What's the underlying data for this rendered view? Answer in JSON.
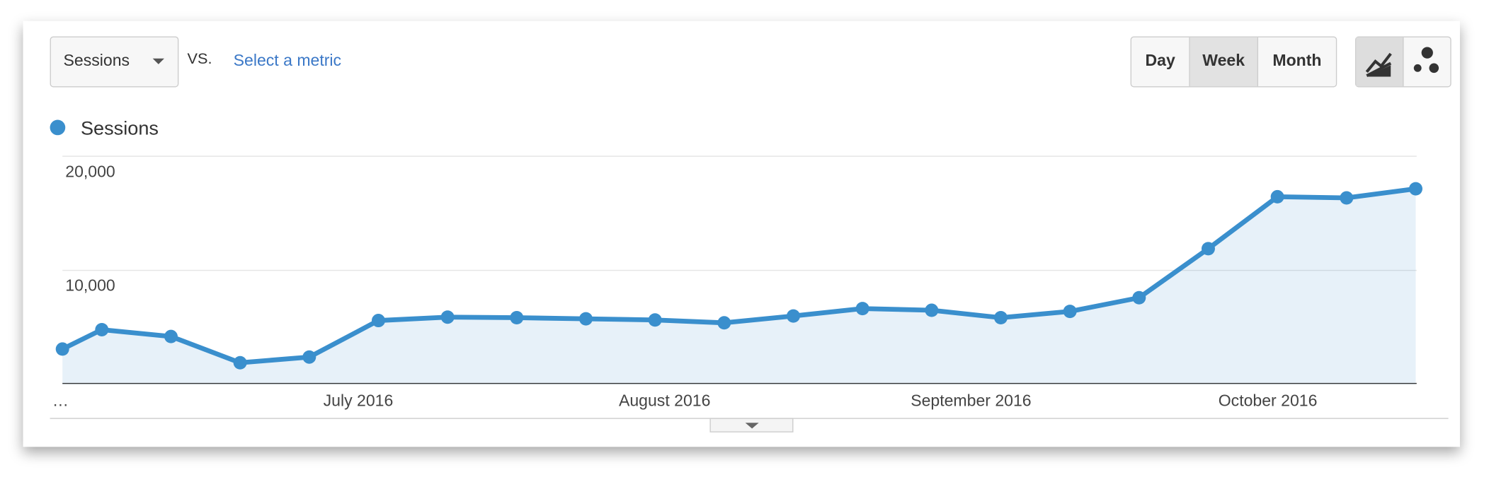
{
  "controls": {
    "metric": "Sessions",
    "vs": "VS.",
    "select_metric": "Select a metric",
    "periods": [
      "Day",
      "Week",
      "Month"
    ],
    "selected_period": 1
  },
  "chart_data": {
    "type": "line",
    "series": [
      {
        "name": "Sessions",
        "color": "#3a8fcd",
        "values": [
          3100,
          4800,
          4200,
          1900,
          2400,
          5600,
          5900,
          5850,
          5750,
          5650,
          5400,
          6000,
          6650,
          6500,
          5850,
          6400,
          7600,
          11900,
          16450,
          16350,
          17150
        ]
      }
    ],
    "xtick_labels": [
      "…",
      "July 2016",
      "August 2016",
      "September 2016",
      "October 2016"
    ],
    "ylim": [
      0,
      20000
    ],
    "yticks": [
      {
        "value": 10000,
        "label": "10,000"
      },
      {
        "value": 20000,
        "label": "20,000"
      }
    ],
    "grid": true
  }
}
